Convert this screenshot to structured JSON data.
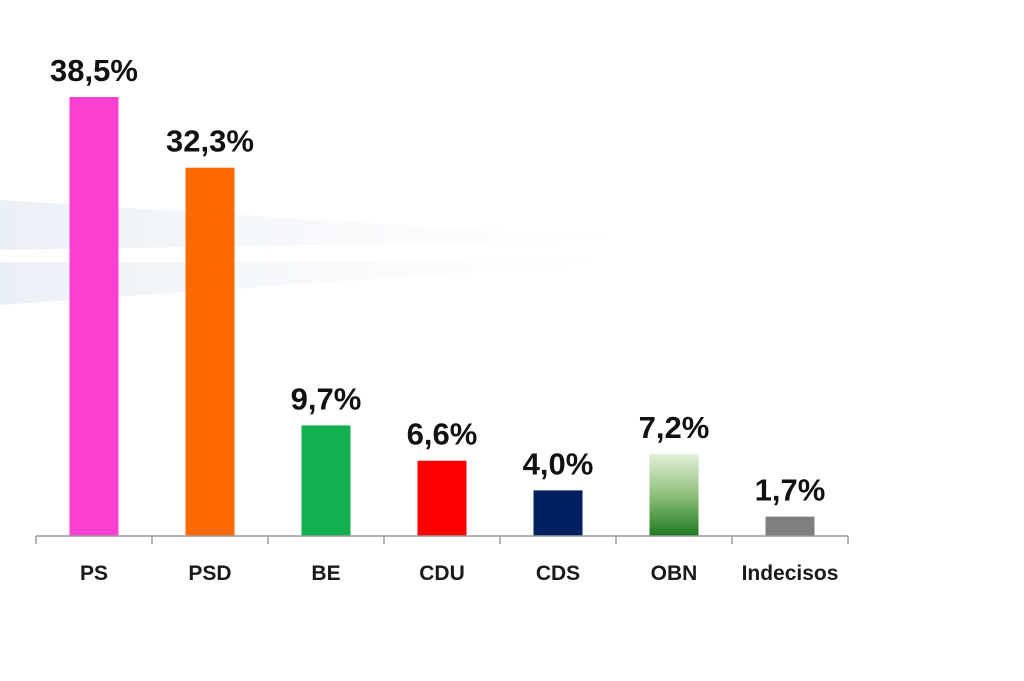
{
  "chart_data": {
    "type": "bar",
    "categories": [
      "PS",
      "PSD",
      "BE",
      "CDU",
      "CDS",
      "OBN",
      "Indecisos"
    ],
    "values": [
      38.5,
      32.3,
      9.7,
      6.6,
      4.0,
      7.2,
      1.7
    ],
    "value_labels": [
      "38,5%",
      "32,3%",
      "9,7%",
      "6,6%",
      "4,0%",
      "7,2%",
      "1,7%"
    ],
    "bar_colors": [
      "#ff3fd2",
      "#ff6a00",
      "#13b04f",
      "#ff0000",
      "#002060",
      "gradient:#dfeed5-#1e7a1e",
      "#7f7f7f"
    ],
    "title": "",
    "xlabel": "",
    "ylabel": "",
    "ylim": [
      0,
      38.5
    ],
    "grid": false,
    "legend": "none"
  }
}
